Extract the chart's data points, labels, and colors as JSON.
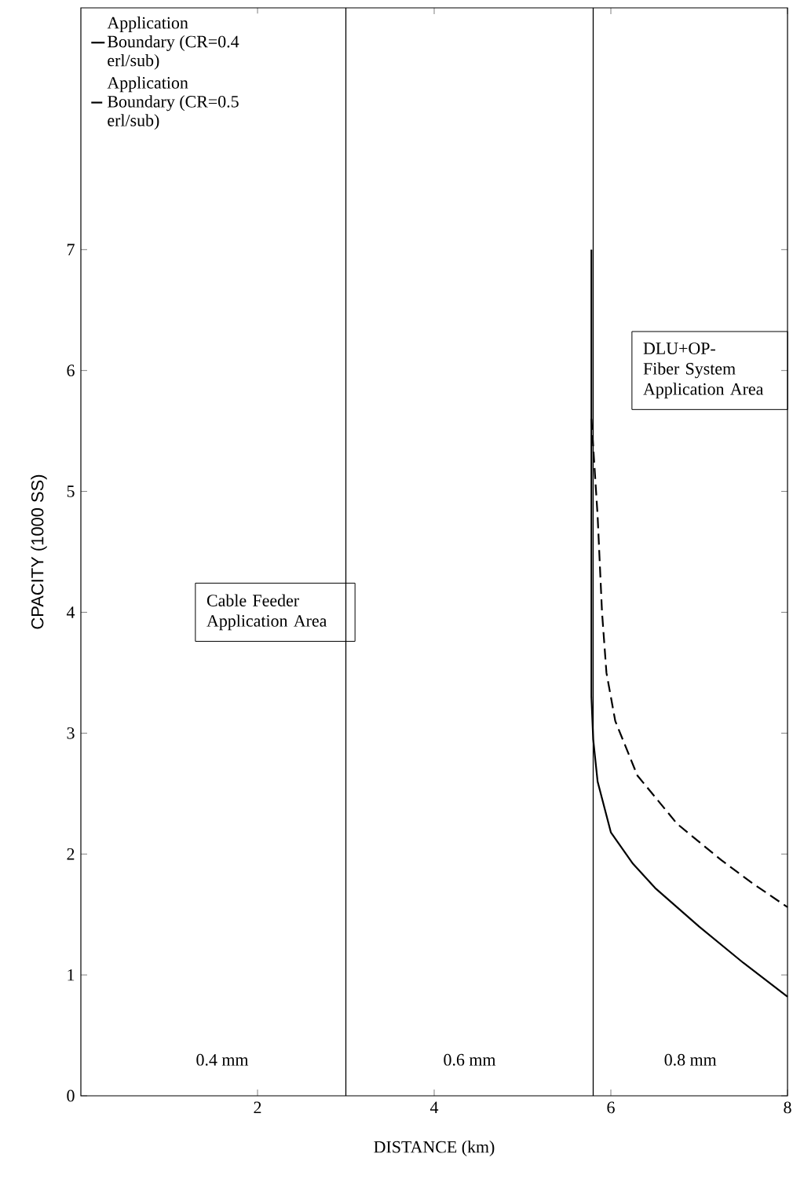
{
  "chart_data": {
    "type": "line",
    "xlabel": "DISTANCE (km)",
    "ylabel": "CPACITY (1000 SS)",
    "series": [
      {
        "name": "Application Boundary (CR=0.4 erl/sub)",
        "color": "#000000",
        "line_style": "solid",
        "x": [
          5.78,
          5.78,
          5.8,
          5.85,
          6.0,
          6.25,
          6.5,
          7.0,
          7.5,
          8.0
        ],
        "values": [
          7.0,
          3.3,
          2.95,
          2.6,
          2.18,
          1.92,
          1.72,
          1.4,
          1.1,
          0.82
        ]
      },
      {
        "name": "Application Boundary (CR=0.5 erl/sub)",
        "color": "#000000",
        "line_style": "dashed",
        "x": [
          5.78,
          5.85,
          5.9,
          5.95,
          6.05,
          6.3,
          6.75,
          7.25,
          7.6,
          8.0
        ],
        "values": [
          5.6,
          4.8,
          4.0,
          3.5,
          3.1,
          2.65,
          2.25,
          1.95,
          1.76,
          1.56
        ]
      }
    ],
    "xlim": [
      0,
      8
    ],
    "ylim": [
      0,
      9
    ],
    "xticks": [
      2,
      4,
      6,
      8
    ],
    "yticks": [
      0,
      1,
      2,
      3,
      4,
      5,
      6,
      7
    ],
    "ref_lines": [
      {
        "axis": "x",
        "value": 3
      },
      {
        "axis": "x",
        "value": 5.8
      }
    ],
    "annotations": [
      "0.4 mm",
      "0.6 mm",
      "0.8 mm",
      "Cable Feeder Application Area",
      "DLU+OP-Fiber System Application Area"
    ],
    "legend": "top left"
  }
}
